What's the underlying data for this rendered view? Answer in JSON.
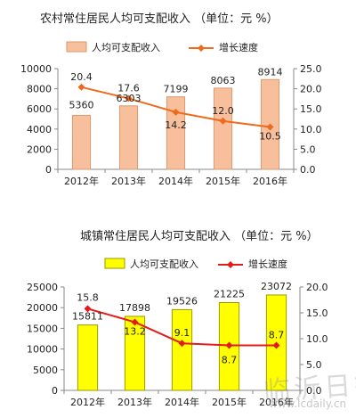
{
  "chart_data": [
    {
      "type": "bar",
      "title": "农村常住居民人均可支配收入  （单位：元  %）",
      "categories": [
        "2012年",
        "2013年",
        "2014年",
        "2015年",
        "2016年"
      ],
      "series": [
        {
          "name": "人均可支配收入",
          "kind": "bar",
          "axis": "left",
          "values": [
            5360,
            6303,
            7199,
            8063,
            8914
          ],
          "color": "#f7bf9b"
        },
        {
          "name": "增长速度",
          "kind": "line",
          "axis": "right",
          "values": [
            20.4,
            17.6,
            14.2,
            12.0,
            10.5
          ],
          "color": "#ef6a1c"
        }
      ],
      "data_labels_bar": [
        "5360",
        "6303",
        "7199",
        "8063",
        "8914"
      ],
      "data_labels_line": [
        "20.4",
        "17.6",
        "14.2",
        "12.0",
        "10.5"
      ],
      "ylim_left": [
        0,
        10000
      ],
      "yticks_left": [
        "0",
        "2000",
        "4000",
        "6000",
        "8000",
        "10000"
      ],
      "ylim_right": [
        0,
        25
      ],
      "yticks_right": [
        "0.0",
        "5.0",
        "10.0",
        "15.0",
        "20.0",
        "25.0"
      ],
      "legend_position": "top",
      "grid": false
    },
    {
      "type": "bar",
      "title": "城镇常住居民人均可支配收入  （单位：元  %）",
      "categories": [
        "2012年",
        "2013年",
        "2014年",
        "2015年",
        "2016年"
      ],
      "series": [
        {
          "name": "人均可支配收入",
          "kind": "bar",
          "axis": "left",
          "values": [
            15811,
            17898,
            19526,
            21225,
            23072
          ],
          "color": "#ffff00"
        },
        {
          "name": "增长速度",
          "kind": "line",
          "axis": "right",
          "values": [
            15.8,
            13.2,
            9.1,
            8.7,
            8.7
          ],
          "color": "#e31b1b"
        }
      ],
      "data_labels_bar": [
        "15811",
        "17898",
        "19526",
        "21225",
        "23072"
      ],
      "data_labels_line": [
        "15.8",
        "13.2",
        "9.1",
        "8.7",
        "8.7"
      ],
      "ylim_left": [
        0,
        25000
      ],
      "yticks_left": [
        "0",
        "5000",
        "10000",
        "15000",
        "20000",
        "25000"
      ],
      "ylim_right": [
        0,
        20
      ],
      "yticks_right": [
        "0.0",
        "5.0",
        "10.0",
        "15.0",
        "20.0"
      ],
      "legend_position": "top",
      "grid": false
    }
  ],
  "watermark": {
    "name": "临沂日报",
    "url": "www.lcdaily.cn"
  }
}
